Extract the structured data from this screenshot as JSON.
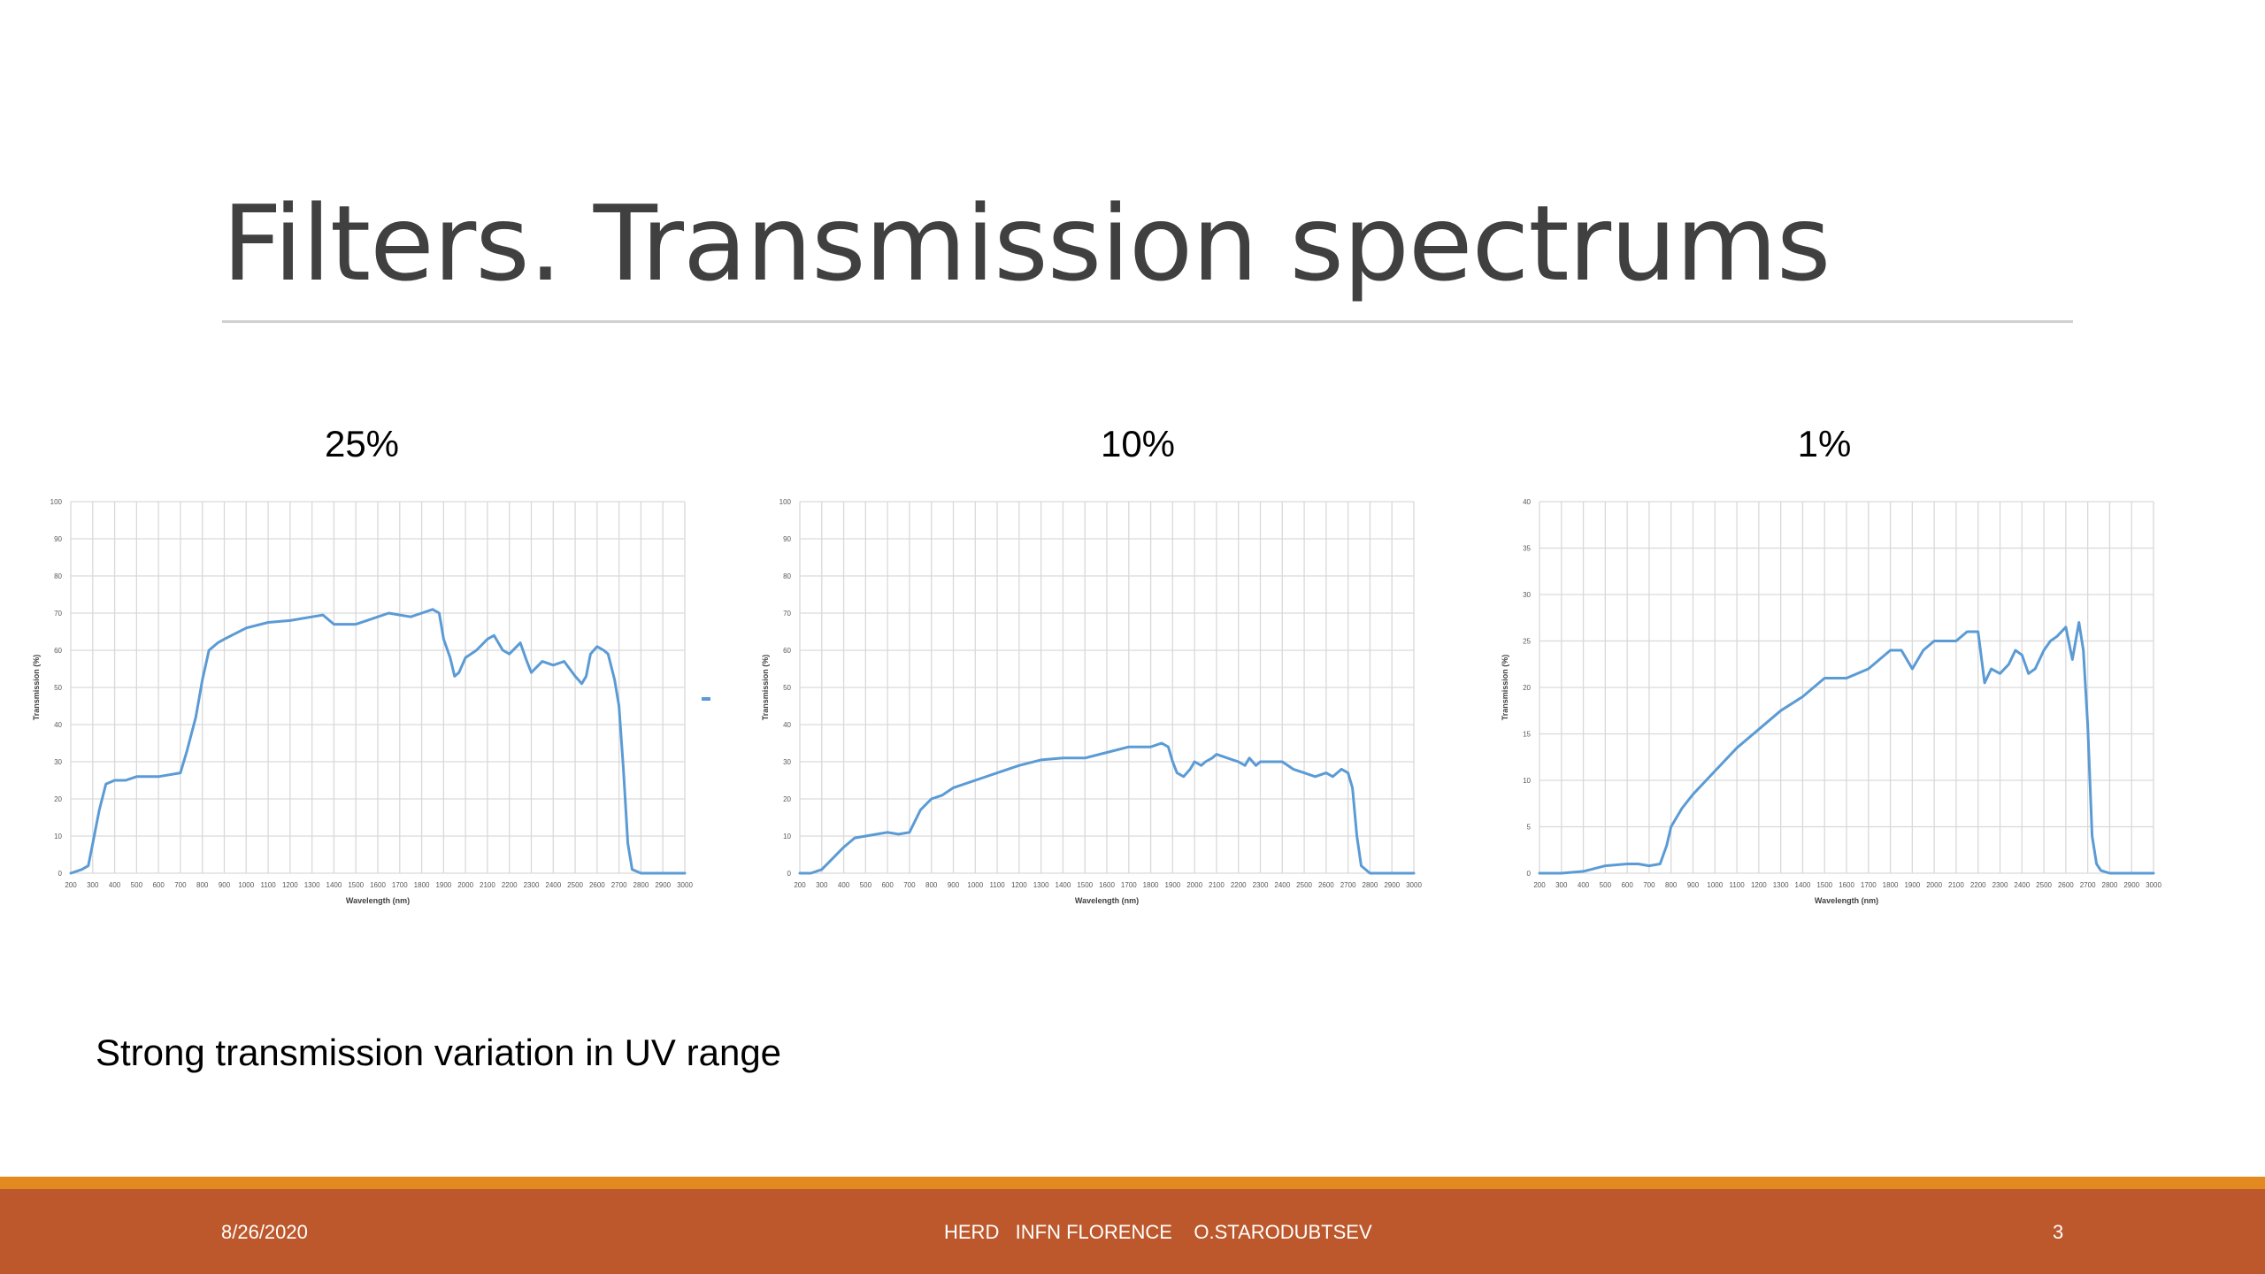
{
  "slide": {
    "title": "Filters. Transmission spectrums",
    "caption": "Strong transmission variation in UV range"
  },
  "footer": {
    "date": "8/26/2020",
    "center": "HERD   INFN FLORENCE    O.STARODUBTSEV",
    "page_number": "3"
  },
  "colors": {
    "line": "#5b9bd5",
    "footer_bar": "#bd582c",
    "footer_accent": "#e28a1f",
    "grid": "#d9d9d9"
  },
  "chart_data": [
    {
      "type": "line",
      "title": "25%",
      "xlabel": "Wavelength (nm)",
      "ylabel": "Transmission (%)",
      "xlim": [
        200,
        3000
      ],
      "ylim": [
        0,
        100
      ],
      "xticks": [
        200,
        300,
        400,
        500,
        600,
        700,
        800,
        900,
        1000,
        1100,
        1200,
        1300,
        1400,
        1500,
        1600,
        1700,
        1800,
        1900,
        2000,
        2100,
        2200,
        2300,
        2400,
        2500,
        2600,
        2700,
        2800,
        2900,
        3000
      ],
      "yticks": [
        0,
        10,
        20,
        30,
        40,
        50,
        60,
        70,
        80,
        90,
        100
      ],
      "grid": true,
      "x": [
        200,
        250,
        280,
        300,
        330,
        360,
        400,
        450,
        500,
        600,
        700,
        730,
        770,
        800,
        830,
        870,
        900,
        1000,
        1100,
        1200,
        1300,
        1350,
        1400,
        1500,
        1550,
        1600,
        1650,
        1700,
        1750,
        1800,
        1850,
        1880,
        1900,
        1930,
        1950,
        1970,
        2000,
        2050,
        2100,
        2130,
        2150,
        2170,
        2200,
        2250,
        2280,
        2300,
        2350,
        2400,
        2450,
        2500,
        2530,
        2550,
        2570,
        2600,
        2630,
        2650,
        2680,
        2700,
        2720,
        2740,
        2760,
        2800,
        2900,
        3000
      ],
      "y": [
        0,
        1,
        2,
        8,
        17,
        24,
        25,
        25,
        26,
        26,
        27,
        33,
        42,
        52,
        60,
        62,
        63,
        66,
        67.5,
        68,
        69,
        69.5,
        67,
        67,
        68,
        69,
        70,
        69.5,
        69,
        70,
        71,
        70,
        63,
        58,
        53,
        54,
        58,
        60,
        63,
        64,
        62,
        60,
        59,
        62,
        57,
        54,
        57,
        56,
        57,
        53,
        51,
        53,
        59,
        61,
        60,
        59,
        52,
        45,
        28,
        8,
        1,
        0,
        0,
        0
      ]
    },
    {
      "type": "line",
      "title": "10%",
      "xlabel": "Wavelength (nm)",
      "ylabel": "Transmission (%)",
      "xlim": [
        200,
        3000
      ],
      "ylim": [
        0,
        100
      ],
      "xticks": [
        200,
        300,
        400,
        500,
        600,
        700,
        800,
        900,
        1000,
        1100,
        1200,
        1300,
        1400,
        1500,
        1600,
        1700,
        1800,
        1900,
        2000,
        2100,
        2200,
        2300,
        2400,
        2500,
        2600,
        2700,
        2800,
        2900,
        3000
      ],
      "yticks": [
        0,
        10,
        20,
        30,
        40,
        50,
        60,
        70,
        80,
        90,
        100
      ],
      "grid": true,
      "x": [
        200,
        250,
        300,
        350,
        400,
        450,
        500,
        550,
        600,
        650,
        700,
        750,
        800,
        850,
        900,
        1000,
        1100,
        1200,
        1300,
        1400,
        1500,
        1600,
        1700,
        1800,
        1850,
        1880,
        1900,
        1920,
        1950,
        1980,
        2000,
        2030,
        2050,
        2080,
        2100,
        2150,
        2200,
        2230,
        2250,
        2280,
        2300,
        2350,
        2400,
        2450,
        2500,
        2550,
        2600,
        2630,
        2650,
        2670,
        2700,
        2720,
        2740,
        2760,
        2800,
        2900,
        3000
      ],
      "y": [
        0,
        0,
        1,
        4,
        7,
        9.5,
        10,
        10.5,
        11,
        10.5,
        11,
        17,
        20,
        21,
        23,
        25,
        27,
        29,
        30.5,
        31,
        31,
        32.5,
        34,
        34,
        35,
        34,
        30,
        27,
        26,
        28,
        30,
        29,
        30,
        31,
        32,
        31,
        30,
        29,
        31,
        29,
        30,
        30,
        30,
        28,
        27,
        26,
        27,
        26,
        27,
        28,
        27,
        23,
        10,
        2,
        0,
        0,
        0
      ]
    },
    {
      "type": "line",
      "title": "1%",
      "xlabel": "Wavelength (nm)",
      "ylabel": "Transmission (%)",
      "xlim": [
        200,
        3000
      ],
      "ylim": [
        0,
        40
      ],
      "xticks": [
        200,
        300,
        400,
        500,
        600,
        700,
        800,
        900,
        1000,
        1100,
        1200,
        1300,
        1400,
        1500,
        1600,
        1700,
        1800,
        1900,
        2000,
        2100,
        2200,
        2300,
        2400,
        2500,
        2600,
        2700,
        2800,
        2900,
        3000
      ],
      "yticks": [
        0,
        5,
        10,
        15,
        20,
        25,
        30,
        35,
        40
      ],
      "grid": true,
      "x": [
        200,
        300,
        400,
        500,
        600,
        650,
        700,
        750,
        780,
        800,
        850,
        900,
        1000,
        1100,
        1200,
        1300,
        1400,
        1500,
        1600,
        1700,
        1750,
        1800,
        1850,
        1900,
        1950,
        2000,
        2050,
        2100,
        2150,
        2200,
        2230,
        2260,
        2300,
        2340,
        2370,
        2400,
        2430,
        2460,
        2500,
        2530,
        2560,
        2600,
        2630,
        2660,
        2680,
        2700,
        2720,
        2740,
        2760,
        2800,
        2900,
        3000
      ],
      "y": [
        0,
        0,
        0.2,
        0.8,
        1,
        1,
        0.8,
        1,
        3,
        5,
        7,
        8.5,
        11,
        13.5,
        15.5,
        17.5,
        19,
        21,
        21,
        22,
        23,
        24,
        24,
        22,
        24,
        25,
        25,
        25,
        26,
        26,
        20.5,
        22,
        21.5,
        22.5,
        24,
        23.5,
        21.5,
        22,
        24,
        25,
        25.5,
        26.5,
        23,
        27,
        24,
        16,
        4,
        1,
        0.3,
        0,
        0,
        0
      ]
    }
  ]
}
